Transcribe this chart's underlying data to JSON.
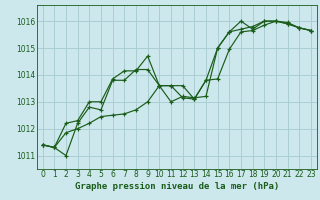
{
  "title": "Graphe pression niveau de la mer (hPa)",
  "bg_color": "#cce8ec",
  "grid_color": "#aacdd4",
  "line_color": "#1a5c1a",
  "x_ticks": [
    0,
    1,
    2,
    3,
    4,
    5,
    6,
    7,
    8,
    9,
    10,
    11,
    12,
    13,
    14,
    15,
    16,
    17,
    18,
    19,
    20,
    21,
    22,
    23
  ],
  "y_ticks": [
    1011,
    1012,
    1013,
    1014,
    1015,
    1016
  ],
  "ylim": [
    1010.5,
    1016.6
  ],
  "xlim": [
    -0.5,
    23.5
  ],
  "series": [
    [
      1011.4,
      1011.3,
      1011.0,
      1012.2,
      1012.8,
      1012.7,
      1013.8,
      1013.8,
      1014.2,
      1014.2,
      1013.6,
      1013.6,
      1013.6,
      1013.1,
      1013.8,
      1015.0,
      1015.6,
      1015.7,
      1015.8,
      1016.0,
      1016.0,
      1015.9,
      1015.75,
      1015.65
    ],
    [
      1011.4,
      1011.3,
      1012.2,
      1012.3,
      1013.0,
      1013.0,
      1013.85,
      1014.15,
      1014.15,
      1014.7,
      1013.6,
      1013.0,
      1013.2,
      1013.15,
      1013.2,
      1015.0,
      1015.6,
      1016.0,
      1015.7,
      1016.0,
      1016.0,
      1015.9,
      1015.75,
      1015.65
    ],
    [
      1011.4,
      1011.3,
      1011.85,
      1012.0,
      1012.2,
      1012.45,
      1012.5,
      1012.55,
      1012.7,
      1013.0,
      1013.6,
      1013.6,
      1013.15,
      1013.1,
      1013.8,
      1013.85,
      1014.95,
      1015.6,
      1015.65,
      1015.85,
      1016.0,
      1015.95,
      1015.75,
      1015.65
    ]
  ],
  "title_fontsize": 6.5,
  "tick_fontsize": 5.5
}
